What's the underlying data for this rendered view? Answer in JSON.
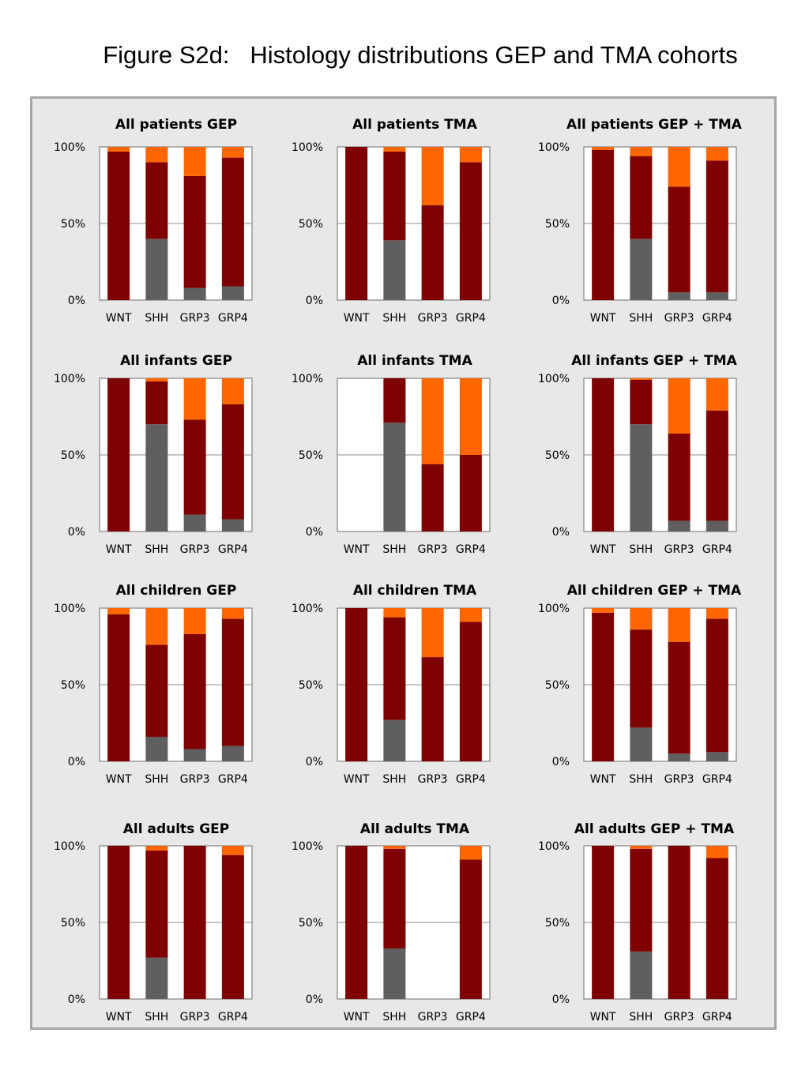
{
  "figure_title": "Figure S2d:   Histology distributions GEP and TMA cohorts",
  "colors": {
    "grey": "#5f5f5f",
    "darkred": "#7f0000",
    "orange": "#ff6600",
    "background": "#e8e8e8",
    "frame": "#a6a6a6"
  },
  "chart_data": [
    {
      "type": "bar",
      "stacked": true,
      "title": "All patients GEP",
      "categories": [
        "WNT",
        "SHH",
        "GRP3",
        "GRP4"
      ],
      "yticks": [
        "0%",
        "50%",
        "100%"
      ],
      "ylim": [
        0,
        100
      ],
      "series": [
        {
          "color": "grey",
          "values": [
            0,
            40,
            8,
            9
          ]
        },
        {
          "color": "darkred",
          "values": [
            97,
            50,
            73,
            84
          ]
        },
        {
          "color": "orange",
          "values": [
            3,
            10,
            19,
            7
          ]
        }
      ]
    },
    {
      "type": "bar",
      "stacked": true,
      "title": "All patients TMA",
      "categories": [
        "WNT",
        "SHH",
        "GRP3",
        "GRP4"
      ],
      "yticks": [
        "0%",
        "50%",
        "100%"
      ],
      "ylim": [
        0,
        100
      ],
      "series": [
        {
          "color": "grey",
          "values": [
            0,
            39,
            0,
            0
          ]
        },
        {
          "color": "darkred",
          "values": [
            100,
            58,
            62,
            90
          ]
        },
        {
          "color": "orange",
          "values": [
            0,
            3,
            38,
            10
          ]
        }
      ]
    },
    {
      "type": "bar",
      "stacked": true,
      "title": "All patients GEP + TMA",
      "categories": [
        "WNT",
        "SHH",
        "GRP3",
        "GRP4"
      ],
      "yticks": [
        "0%",
        "50%",
        "100%"
      ],
      "ylim": [
        0,
        100
      ],
      "series": [
        {
          "color": "grey",
          "values": [
            0,
            40,
            5,
            5
          ]
        },
        {
          "color": "darkred",
          "values": [
            98,
            54,
            69,
            86
          ]
        },
        {
          "color": "orange",
          "values": [
            2,
            6,
            26,
            9
          ]
        }
      ]
    },
    {
      "type": "bar",
      "stacked": true,
      "title": "All infants GEP",
      "categories": [
        "WNT",
        "SHH",
        "GRP3",
        "GRP4"
      ],
      "yticks": [
        "0%",
        "50%",
        "100%"
      ],
      "ylim": [
        0,
        100
      ],
      "series": [
        {
          "color": "grey",
          "values": [
            0,
            70,
            11,
            8
          ]
        },
        {
          "color": "darkred",
          "values": [
            100,
            28,
            62,
            75
          ]
        },
        {
          "color": "orange",
          "values": [
            0,
            2,
            27,
            17
          ]
        }
      ]
    },
    {
      "type": "bar",
      "stacked": true,
      "title": "All infants TMA",
      "categories": [
        "WNT",
        "SHH",
        "GRP3",
        "GRP4"
      ],
      "yticks": [
        "0%",
        "50%",
        "100%"
      ],
      "ylim": [
        0,
        100
      ],
      "series": [
        {
          "color": "grey",
          "values": [
            0,
            71,
            0,
            0
          ]
        },
        {
          "color": "darkred",
          "values": [
            0,
            29,
            44,
            50
          ]
        },
        {
          "color": "orange",
          "values": [
            0,
            0,
            56,
            50
          ]
        }
      ]
    },
    {
      "type": "bar",
      "stacked": true,
      "title": "All infants GEP + TMA",
      "categories": [
        "WNT",
        "SHH",
        "GRP3",
        "GRP4"
      ],
      "yticks": [
        "0%",
        "50%",
        "100%"
      ],
      "ylim": [
        0,
        100
      ],
      "series": [
        {
          "color": "grey",
          "values": [
            0,
            70,
            7,
            7
          ]
        },
        {
          "color": "darkred",
          "values": [
            100,
            29,
            57,
            72
          ]
        },
        {
          "color": "orange",
          "values": [
            0,
            1,
            36,
            21
          ]
        }
      ]
    },
    {
      "type": "bar",
      "stacked": true,
      "title": "All children GEP",
      "categories": [
        "WNT",
        "SHH",
        "GRP3",
        "GRP4"
      ],
      "yticks": [
        "0%",
        "50%",
        "100%"
      ],
      "ylim": [
        0,
        100
      ],
      "series": [
        {
          "color": "grey",
          "values": [
            0,
            16,
            8,
            10
          ]
        },
        {
          "color": "darkred",
          "values": [
            96,
            60,
            75,
            83
          ]
        },
        {
          "color": "orange",
          "values": [
            4,
            24,
            17,
            7
          ]
        }
      ]
    },
    {
      "type": "bar",
      "stacked": true,
      "title": "All children TMA",
      "categories": [
        "WNT",
        "SHH",
        "GRP3",
        "GRP4"
      ],
      "yticks": [
        "0%",
        "50%",
        "100%"
      ],
      "ylim": [
        0,
        100
      ],
      "series": [
        {
          "color": "grey",
          "values": [
            0,
            27,
            0,
            0
          ]
        },
        {
          "color": "darkred",
          "values": [
            100,
            67,
            68,
            91
          ]
        },
        {
          "color": "orange",
          "values": [
            0,
            6,
            32,
            9
          ]
        }
      ]
    },
    {
      "type": "bar",
      "stacked": true,
      "title": "All children GEP + TMA",
      "categories": [
        "WNT",
        "SHH",
        "GRP3",
        "GRP4"
      ],
      "yticks": [
        "0%",
        "50%",
        "100%"
      ],
      "ylim": [
        0,
        100
      ],
      "series": [
        {
          "color": "grey",
          "values": [
            0,
            22,
            5,
            6
          ]
        },
        {
          "color": "darkred",
          "values": [
            97,
            64,
            73,
            87
          ]
        },
        {
          "color": "orange",
          "values": [
            3,
            14,
            22,
            7
          ]
        }
      ]
    },
    {
      "type": "bar",
      "stacked": true,
      "title": "All adults GEP",
      "categories": [
        "WNT",
        "SHH",
        "GRP3",
        "GRP4"
      ],
      "yticks": [
        "0%",
        "50%",
        "100%"
      ],
      "ylim": [
        0,
        100
      ],
      "series": [
        {
          "color": "grey",
          "values": [
            0,
            27,
            0,
            0
          ]
        },
        {
          "color": "darkred",
          "values": [
            100,
            70,
            100,
            94
          ]
        },
        {
          "color": "orange",
          "values": [
            0,
            3,
            0,
            6
          ]
        }
      ]
    },
    {
      "type": "bar",
      "stacked": true,
      "title": "All adults TMA",
      "categories": [
        "WNT",
        "SHH",
        "GRP3",
        "GRP4"
      ],
      "yticks": [
        "0%",
        "50%",
        "100%"
      ],
      "ylim": [
        0,
        100
      ],
      "series": [
        {
          "color": "grey",
          "values": [
            0,
            33,
            0,
            0
          ]
        },
        {
          "color": "darkred",
          "values": [
            100,
            65,
            0,
            91
          ]
        },
        {
          "color": "orange",
          "values": [
            0,
            2,
            0,
            9
          ]
        }
      ]
    },
    {
      "type": "bar",
      "stacked": true,
      "title": "All adults GEP + TMA",
      "categories": [
        "WNT",
        "SHH",
        "GRP3",
        "GRP4"
      ],
      "yticks": [
        "0%",
        "50%",
        "100%"
      ],
      "ylim": [
        0,
        100
      ],
      "series": [
        {
          "color": "grey",
          "values": [
            0,
            31,
            0,
            0
          ]
        },
        {
          "color": "darkred",
          "values": [
            100,
            67,
            100,
            92
          ]
        },
        {
          "color": "orange",
          "values": [
            0,
            2,
            0,
            8
          ]
        }
      ]
    }
  ]
}
